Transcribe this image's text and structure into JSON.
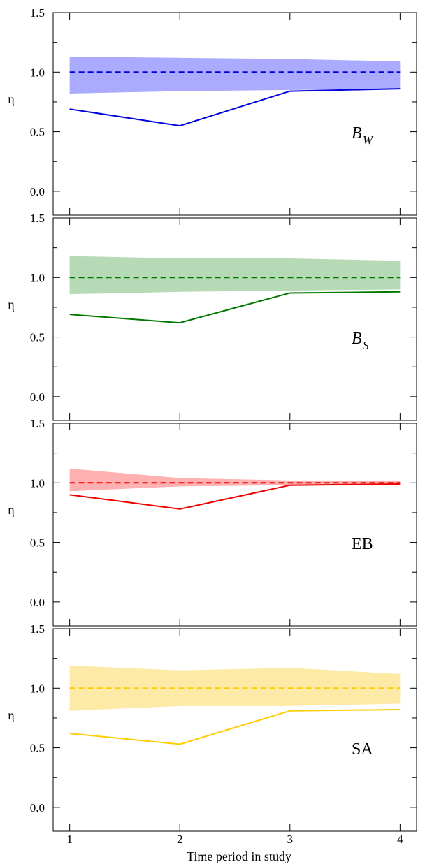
{
  "chart_data": [
    {
      "type": "line",
      "label": "B",
      "label_sub": "W",
      "ylabel": "η",
      "color": "#0000dd",
      "band_color": "#aaaaff",
      "x": [
        1,
        2,
        3,
        4
      ],
      "series": [
        {
          "values": [
            0.69,
            0.55,
            0.84,
            0.86
          ]
        },
        {
          "values": [
            1.0,
            1.0,
            1.0,
            1.0
          ],
          "style": "dashed"
        }
      ],
      "band": {
        "upper": [
          1.13,
          1.12,
          1.11,
          1.09
        ],
        "lower": [
          0.82,
          0.84,
          0.85,
          0.86
        ]
      },
      "xlim": [
        0.85,
        4.15
      ],
      "ylim": [
        -0.2,
        1.5
      ],
      "yticks": [
        "0.0",
        "0.5",
        "1.0",
        "1.5"
      ]
    },
    {
      "type": "line",
      "label": "B",
      "label_sub": "S",
      "ylabel": "η",
      "color": "#007700",
      "band_color": "#b5dab5",
      "x": [
        1,
        2,
        3,
        4
      ],
      "series": [
        {
          "values": [
            0.69,
            0.62,
            0.87,
            0.88
          ]
        },
        {
          "values": [
            1.0,
            1.0,
            1.0,
            1.0
          ],
          "style": "dashed"
        }
      ],
      "band": {
        "upper": [
          1.18,
          1.16,
          1.16,
          1.14
        ],
        "lower": [
          0.86,
          0.88,
          0.89,
          0.9
        ]
      },
      "xlim": [
        0.85,
        4.15
      ],
      "ylim": [
        -0.2,
        1.5
      ],
      "yticks": [
        "0.0",
        "0.5",
        "1.0",
        "1.5"
      ]
    },
    {
      "type": "line",
      "label": "EB",
      "label_sub": "",
      "ylabel": "η",
      "color": "#ee0000",
      "band_color": "#ffb0b0",
      "x": [
        1,
        2,
        3,
        4
      ],
      "series": [
        {
          "values": [
            0.9,
            0.78,
            0.98,
            0.99
          ]
        },
        {
          "values": [
            1.0,
            1.0,
            1.0,
            1.0
          ],
          "style": "dashed"
        }
      ],
      "band": {
        "upper": [
          1.12,
          1.04,
          1.02,
          1.02
        ],
        "lower": [
          0.93,
          0.97,
          0.98,
          0.99
        ]
      },
      "xlim": [
        0.85,
        4.15
      ],
      "ylim": [
        -0.2,
        1.5
      ],
      "yticks": [
        "0.0",
        "0.5",
        "1.0",
        "1.5"
      ]
    },
    {
      "type": "line",
      "label": "SA",
      "label_sub": "",
      "ylabel": "η",
      "color": "#ffcc00",
      "band_color": "#fdeaa6",
      "x": [
        1,
        2,
        3,
        4
      ],
      "series": [
        {
          "values": [
            0.62,
            0.53,
            0.81,
            0.82
          ]
        },
        {
          "values": [
            1.0,
            1.0,
            1.0,
            1.0
          ],
          "style": "dashed"
        }
      ],
      "band": {
        "upper": [
          1.19,
          1.15,
          1.17,
          1.12
        ],
        "lower": [
          0.81,
          0.85,
          0.85,
          0.87
        ]
      },
      "xlim": [
        0.85,
        4.15
      ],
      "ylim": [
        -0.2,
        1.5
      ],
      "yticks": [
        "0.0",
        "0.5",
        "1.0",
        "1.5"
      ]
    }
  ],
  "xticks": [
    "1",
    "2",
    "3",
    "4"
  ],
  "xlabel": "Time period in study"
}
